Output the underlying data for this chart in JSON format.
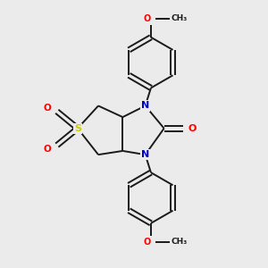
{
  "bg_color": "#ebebeb",
  "bond_color": "#1a1a1a",
  "N_color": "#0000cc",
  "O_color": "#ff0000",
  "S_color": "#cccc00",
  "line_width": 1.4,
  "figsize": [
    3.0,
    3.0
  ],
  "dpi": 100,
  "xlim": [
    -0.8,
    1.2
  ],
  "ylim": [
    -1.4,
    1.4
  ]
}
